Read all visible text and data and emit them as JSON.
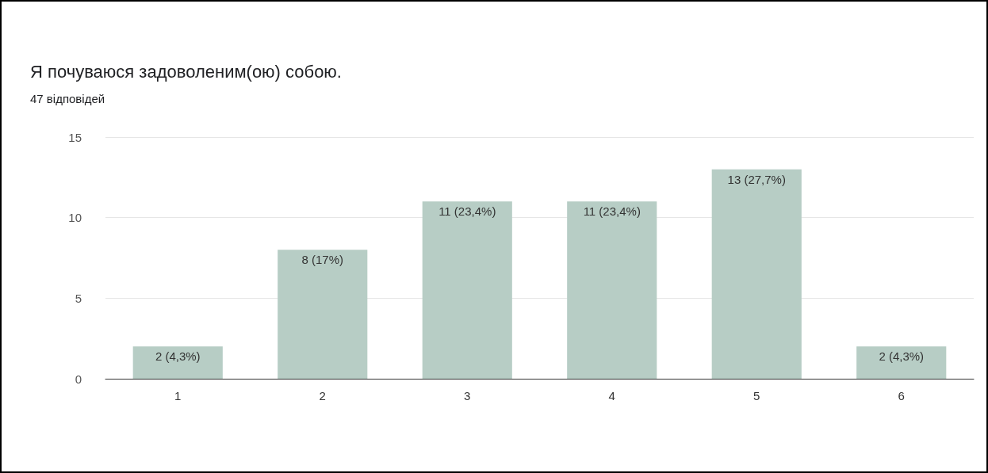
{
  "chart_data": {
    "type": "bar",
    "title": "Я почуваюся задоволеним(ою) собою.",
    "subtitle": "47 відповідей",
    "categories": [
      "1",
      "2",
      "3",
      "4",
      "5",
      "6"
    ],
    "values": [
      2,
      8,
      11,
      11,
      13,
      2
    ],
    "value_labels": [
      "2 (4,3%)",
      "8 (17%)",
      "11 (23,4%)",
      "11 (23,4%)",
      "13 (27,7%)",
      "2 (4,3%)"
    ],
    "color": "#b7cdc5",
    "ylim": [
      0,
      15
    ],
    "yticks": [
      0,
      5,
      10,
      15
    ],
    "grid": "y"
  }
}
